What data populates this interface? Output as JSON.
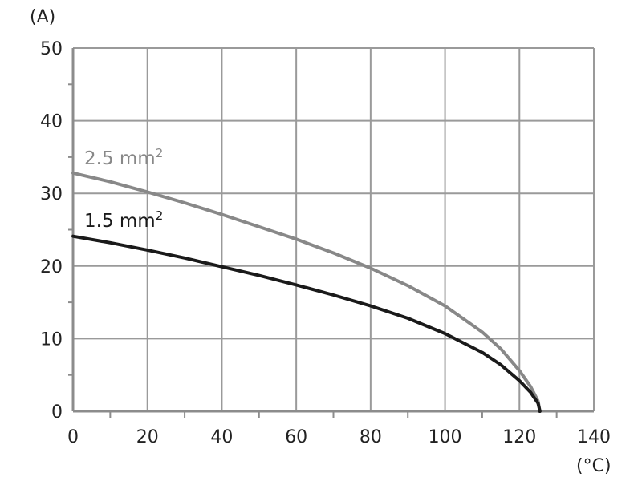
{
  "chart_data": {
    "type": "line",
    "title": "",
    "xlabel": "(°C)",
    "ylabel": "(A)",
    "xlim": [
      0,
      140
    ],
    "ylim": [
      0,
      50
    ],
    "x_ticks": [
      "0",
      "20",
      "40",
      "60",
      "80",
      "100",
      "120",
      "140"
    ],
    "y_ticks": [
      "0",
      "10",
      "20",
      "30",
      "40",
      "50"
    ],
    "grid": true,
    "legend": "inline labels",
    "series": [
      {
        "name": "2.5 mm²",
        "label_main": "2.5 mm",
        "label_sup": "2",
        "color": "#888888",
        "points": [
          [
            0,
            32.8
          ],
          [
            10,
            31.6
          ],
          [
            20,
            30.2
          ],
          [
            30,
            28.7
          ],
          [
            40,
            27.1
          ],
          [
            50,
            25.4
          ],
          [
            60,
            23.7
          ],
          [
            70,
            21.8
          ],
          [
            80,
            19.7
          ],
          [
            90,
            17.3
          ],
          [
            100,
            14.5
          ],
          [
            110,
            10.9
          ],
          [
            115,
            8.6
          ],
          [
            120,
            5.6
          ],
          [
            123,
            3.4
          ],
          [
            125,
            1.4
          ],
          [
            125.5,
            0
          ]
        ]
      },
      {
        "name": "1.5 mm²",
        "label_main": "1.5 mm",
        "label_sup": "2",
        "color": "#1a1a1a",
        "points": [
          [
            0,
            24.1
          ],
          [
            10,
            23.2
          ],
          [
            20,
            22.2
          ],
          [
            30,
            21.1
          ],
          [
            40,
            19.9
          ],
          [
            50,
            18.7
          ],
          [
            60,
            17.4
          ],
          [
            70,
            16.0
          ],
          [
            80,
            14.5
          ],
          [
            90,
            12.8
          ],
          [
            100,
            10.7
          ],
          [
            110,
            8.1
          ],
          [
            115,
            6.4
          ],
          [
            120,
            4.2
          ],
          [
            123,
            2.6
          ],
          [
            125,
            1.1
          ],
          [
            125.5,
            0
          ]
        ]
      }
    ]
  }
}
